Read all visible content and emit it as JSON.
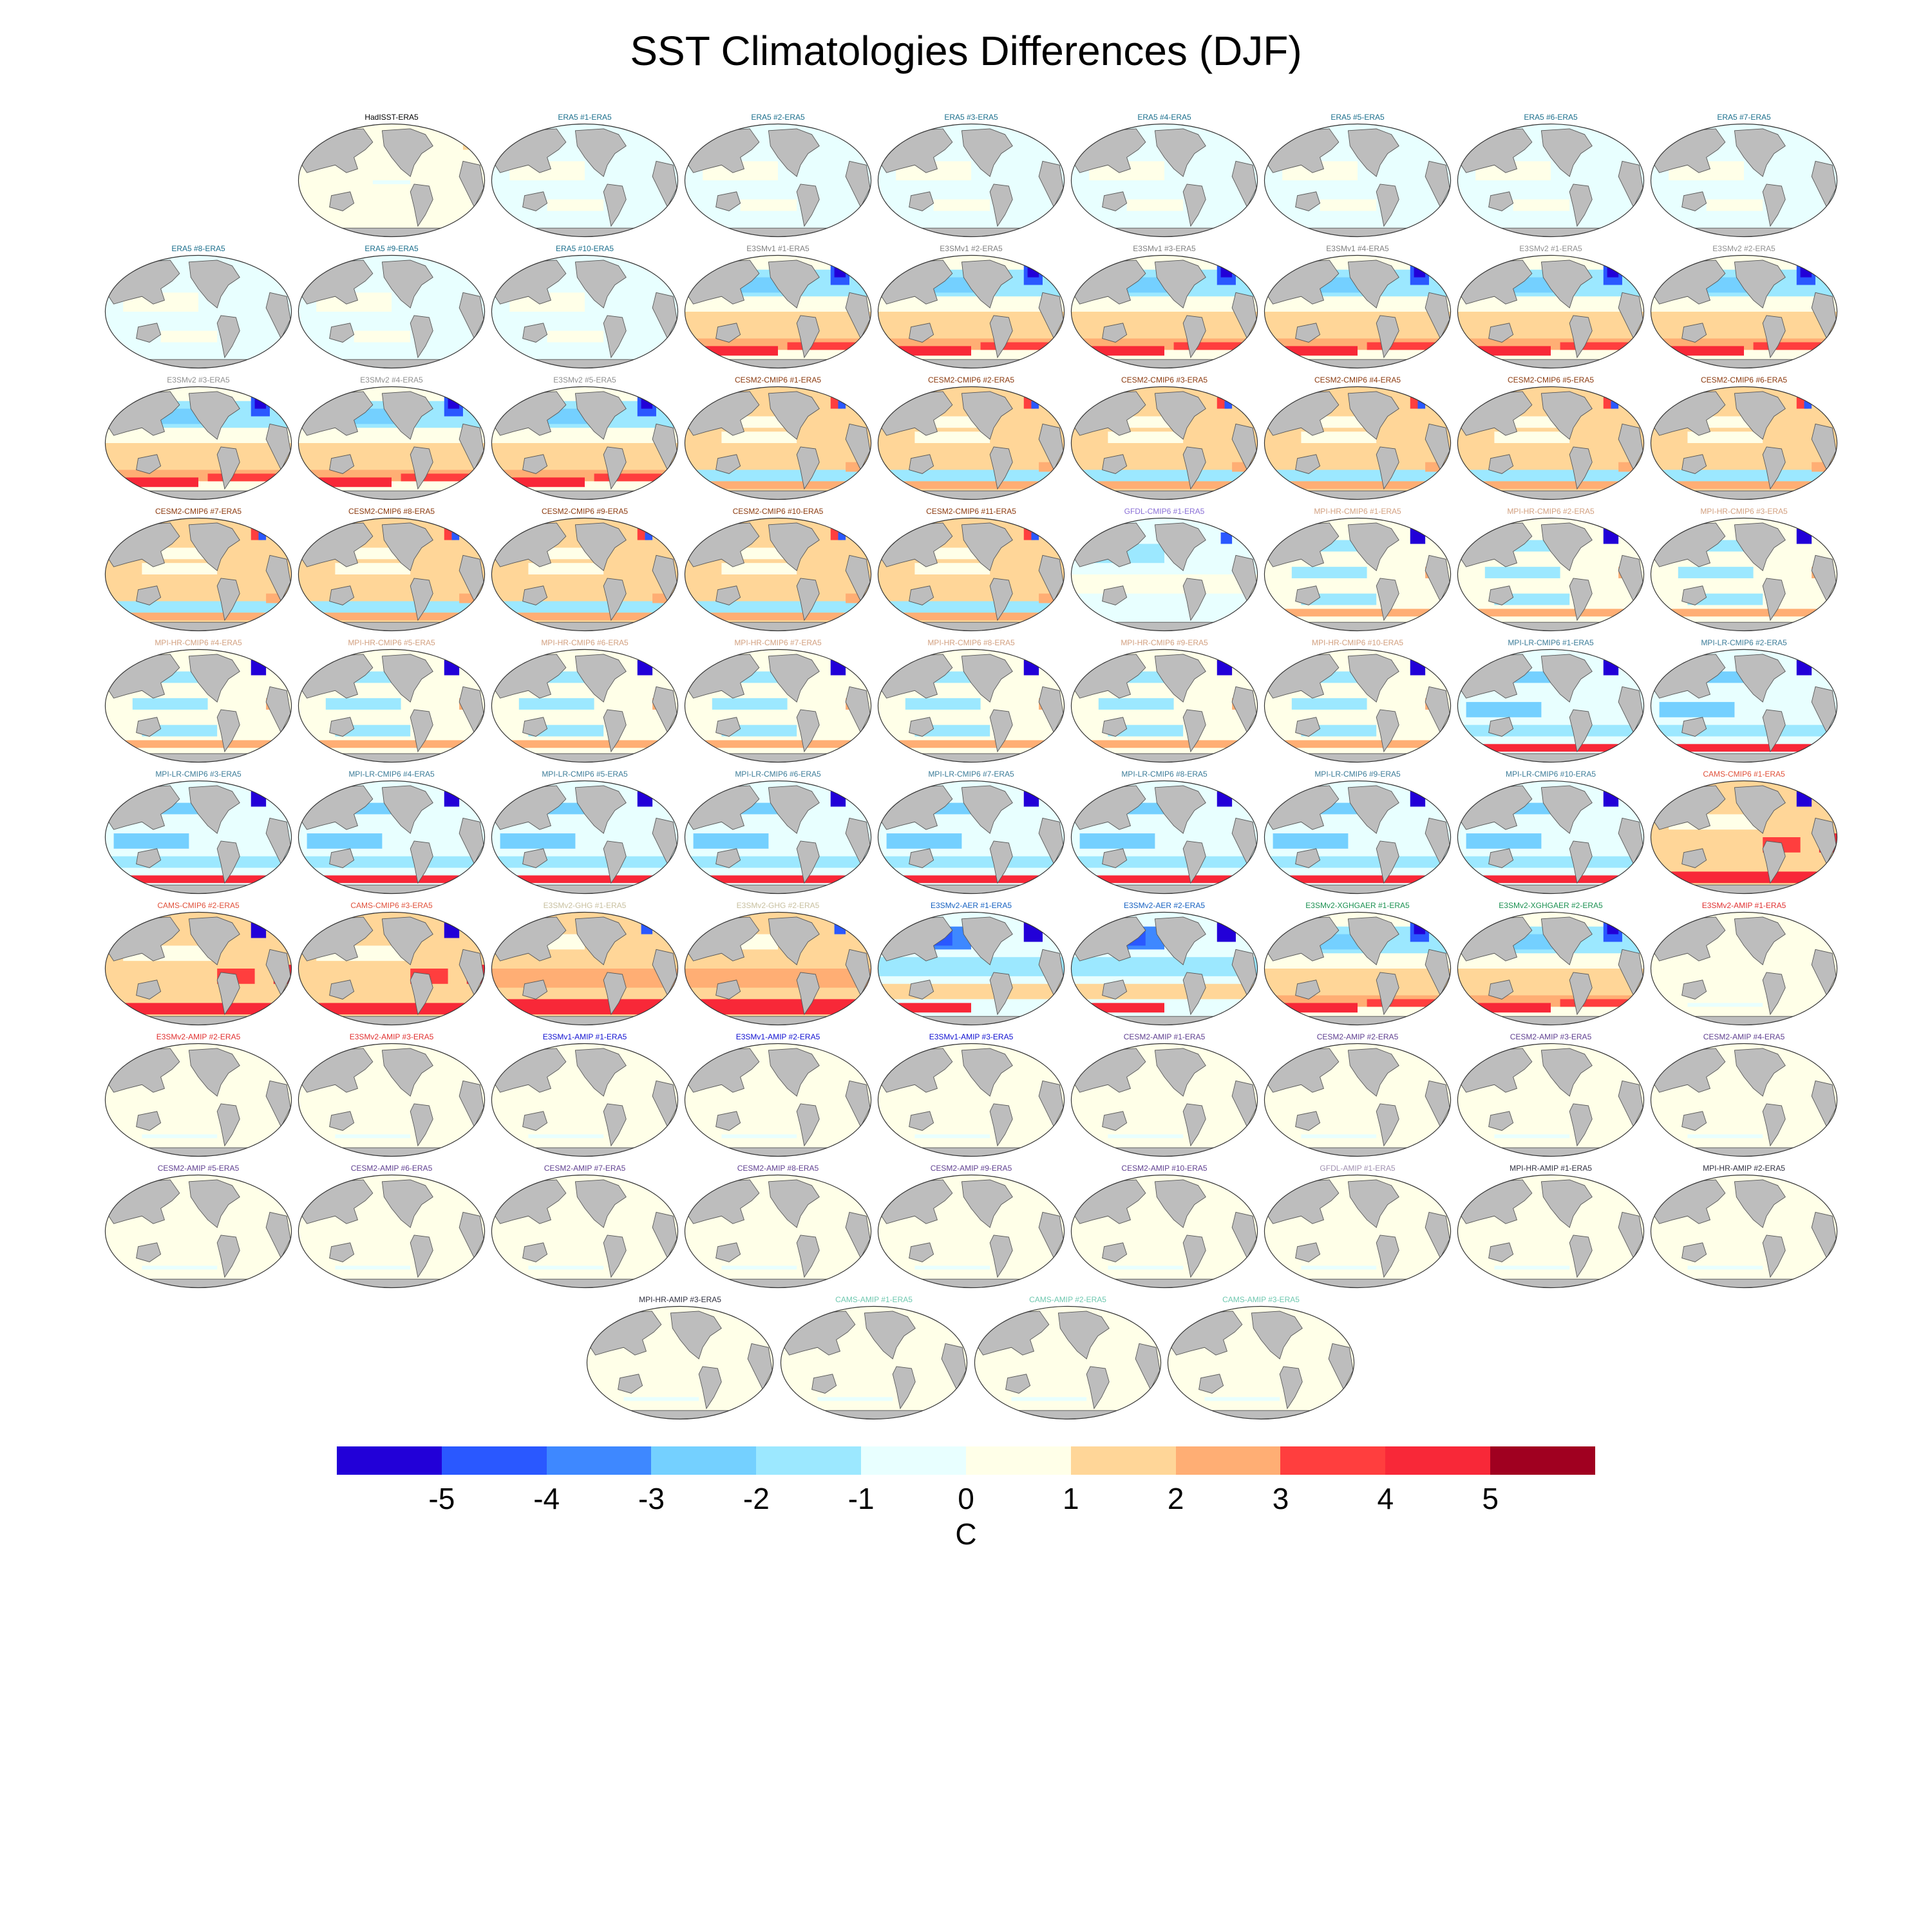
{
  "chart_data": {
    "type": "heatmap",
    "title": "SST Climatologies Differences (DJF)",
    "colorbar": {
      "label": "C",
      "ticks": [
        "-5",
        "-4",
        "-3",
        "-2",
        "-1",
        "0",
        "1",
        "2",
        "3",
        "4",
        "5"
      ],
      "colors": [
        "#2200d8",
        "#2a58ff",
        "#3e88ff",
        "#74d0ff",
        "#9ce8ff",
        "#e8ffff",
        "#ffffe8",
        "#ffd698",
        "#ffae74",
        "#ff3e3e",
        "#f82838",
        "#a00020"
      ]
    },
    "panels": [
      {
        "title": "HadISST-ERA5",
        "color": "#000000",
        "pattern": "had"
      },
      {
        "title": "ERA5  #1-ERA5",
        "color": "#1a6e8c",
        "pattern": "era5"
      },
      {
        "title": "ERA5  #2-ERA5",
        "color": "#1a6e8c",
        "pattern": "era5"
      },
      {
        "title": "ERA5  #3-ERA5",
        "color": "#1a6e8c",
        "pattern": "era5"
      },
      {
        "title": "ERA5  #4-ERA5",
        "color": "#1a6e8c",
        "pattern": "era5"
      },
      {
        "title": "ERA5  #5-ERA5",
        "color": "#1a6e8c",
        "pattern": "era5"
      },
      {
        "title": "ERA5  #6-ERA5",
        "color": "#1a6e8c",
        "pattern": "era5"
      },
      {
        "title": "ERA5  #7-ERA5",
        "color": "#1a6e8c",
        "pattern": "era5"
      },
      {
        "title": "ERA5  #8-ERA5",
        "color": "#1a6e8c",
        "pattern": "era5"
      },
      {
        "title": "ERA5  #9-ERA5",
        "color": "#1a6e8c",
        "pattern": "era5"
      },
      {
        "title": "ERA5  #10-ERA5",
        "color": "#1a6e8c",
        "pattern": "era5"
      },
      {
        "title": "E3SMv1 #1-ERA5",
        "color": "#808080",
        "pattern": "e3sm"
      },
      {
        "title": "E3SMv1 #2-ERA5",
        "color": "#808080",
        "pattern": "e3sm"
      },
      {
        "title": "E3SMv1 #3-ERA5",
        "color": "#808080",
        "pattern": "e3sm"
      },
      {
        "title": "E3SMv1 #4-ERA5",
        "color": "#808080",
        "pattern": "e3sm"
      },
      {
        "title": "E3SMv2 #1-ERA5",
        "color": "#909090",
        "pattern": "e3sm"
      },
      {
        "title": "E3SMv2 #2-ERA5",
        "color": "#909090",
        "pattern": "e3sm"
      },
      {
        "title": "E3SMv2 #3-ERA5",
        "color": "#909090",
        "pattern": "e3sm"
      },
      {
        "title": "E3SMv2 #4-ERA5",
        "color": "#909090",
        "pattern": "e3sm"
      },
      {
        "title": "E3SMv2 #5-ERA5",
        "color": "#909090",
        "pattern": "e3sm"
      },
      {
        "title": "CESM2-CMIP6 #1-ERA5",
        "color": "#8b3a0f",
        "pattern": "cesm"
      },
      {
        "title": "CESM2-CMIP6 #2-ERA5",
        "color": "#8b3a0f",
        "pattern": "cesm"
      },
      {
        "title": "CESM2-CMIP6 #3-ERA5",
        "color": "#8b3a0f",
        "pattern": "cesm"
      },
      {
        "title": "CESM2-CMIP6 #4-ERA5",
        "color": "#8b3a0f",
        "pattern": "cesm"
      },
      {
        "title": "CESM2-CMIP6 #5-ERA5",
        "color": "#8b3a0f",
        "pattern": "cesm"
      },
      {
        "title": "CESM2-CMIP6 #6-ERA5",
        "color": "#8b3a0f",
        "pattern": "cesm"
      },
      {
        "title": "CESM2-CMIP6 #7-ERA5",
        "color": "#8b3a0f",
        "pattern": "cesm"
      },
      {
        "title": "CESM2-CMIP6 #8-ERA5",
        "color": "#8b3a0f",
        "pattern": "cesm"
      },
      {
        "title": "CESM2-CMIP6 #9-ERA5",
        "color": "#8b3a0f",
        "pattern": "cesm"
      },
      {
        "title": "CESM2-CMIP6 #10-ERA5",
        "color": "#8b3a0f",
        "pattern": "cesm"
      },
      {
        "title": "CESM2-CMIP6 #11-ERA5",
        "color": "#8b3a0f",
        "pattern": "cesm"
      },
      {
        "title": "GFDL-CMIP6 #1-ERA5",
        "color": "#8a6fd6",
        "pattern": "gfdl"
      },
      {
        "title": "MPI-HR-CMIP6 #1-ERA5",
        "color": "#d2a080",
        "pattern": "mpi"
      },
      {
        "title": "MPI-HR-CMIP6 #2-ERA5",
        "color": "#d2a080",
        "pattern": "mpi"
      },
      {
        "title": "MPI-HR-CMIP6 #3-ERA5",
        "color": "#d2a080",
        "pattern": "mpi"
      },
      {
        "title": "MPI-HR-CMIP6 #4-ERA5",
        "color": "#d2a080",
        "pattern": "mpi"
      },
      {
        "title": "MPI-HR-CMIP6 #5-ERA5",
        "color": "#d2a080",
        "pattern": "mpi"
      },
      {
        "title": "MPI-HR-CMIP6 #6-ERA5",
        "color": "#d2a080",
        "pattern": "mpi"
      },
      {
        "title": "MPI-HR-CMIP6 #7-ERA5",
        "color": "#d2a080",
        "pattern": "mpi"
      },
      {
        "title": "MPI-HR-CMIP6 #8-ERA5",
        "color": "#d2a080",
        "pattern": "mpi"
      },
      {
        "title": "MPI-HR-CMIP6 #9-ERA5",
        "color": "#d2a080",
        "pattern": "mpi"
      },
      {
        "title": "MPI-HR-CMIP6 #10-ERA5",
        "color": "#d2a080",
        "pattern": "mpi"
      },
      {
        "title": "MPI-LR-CMIP6 #1-ERA5",
        "color": "#3c7c98",
        "pattern": "mpilr"
      },
      {
        "title": "MPI-LR-CMIP6 #2-ERA5",
        "color": "#3c7c98",
        "pattern": "mpilr"
      },
      {
        "title": "MPI-LR-CMIP6 #3-ERA5",
        "color": "#3c7c98",
        "pattern": "mpilr"
      },
      {
        "title": "MPI-LR-CMIP6 #4-ERA5",
        "color": "#3c7c98",
        "pattern": "mpilr"
      },
      {
        "title": "MPI-LR-CMIP6 #5-ERA5",
        "color": "#3c7c98",
        "pattern": "mpilr"
      },
      {
        "title": "MPI-LR-CMIP6 #6-ERA5",
        "color": "#3c7c98",
        "pattern": "mpilr"
      },
      {
        "title": "MPI-LR-CMIP6 #7-ERA5",
        "color": "#3c7c98",
        "pattern": "mpilr"
      },
      {
        "title": "MPI-LR-CMIP6 #8-ERA5",
        "color": "#3c7c98",
        "pattern": "mpilr"
      },
      {
        "title": "MPI-LR-CMIP6 #9-ERA5",
        "color": "#3c7c98",
        "pattern": "mpilr"
      },
      {
        "title": "MPI-LR-CMIP6 #10-ERA5",
        "color": "#3c7c98",
        "pattern": "mpilr"
      },
      {
        "title": "CAMS-CMIP6 #1-ERA5",
        "color": "#e0503a",
        "pattern": "cams"
      },
      {
        "title": "CAMS-CMIP6 #2-ERA5",
        "color": "#e0503a",
        "pattern": "cams"
      },
      {
        "title": "CAMS-CMIP6 #3-ERA5",
        "color": "#e0503a",
        "pattern": "cams"
      },
      {
        "title": "E3SMv2-GHG #1-ERA5",
        "color": "#c8c0a0",
        "pattern": "ghg"
      },
      {
        "title": "E3SMv2-GHG #2-ERA5",
        "color": "#c8c0a0",
        "pattern": "ghg"
      },
      {
        "title": "E3SMv2-AER #1-ERA5",
        "color": "#1560c0",
        "pattern": "aer"
      },
      {
        "title": "E3SMv2-AER #2-ERA5",
        "color": "#1560c0",
        "pattern": "aer"
      },
      {
        "title": "E3SMv2-XGHGAER #1-ERA5",
        "color": "#1a9050",
        "pattern": "e3sm"
      },
      {
        "title": "E3SMv2-XGHGAER #2-ERA5",
        "color": "#1a9050",
        "pattern": "e3sm"
      },
      {
        "title": "E3SMv2-AMIP #1-ERA5",
        "color": "#e03030",
        "pattern": "amip"
      },
      {
        "title": "E3SMv2-AMIP #2-ERA5",
        "color": "#e03030",
        "pattern": "amip"
      },
      {
        "title": "E3SMv2-AMIP #3-ERA5",
        "color": "#e03030",
        "pattern": "amip"
      },
      {
        "title": "E3SMv1-AMIP #1-ERA5",
        "color": "#1010d0",
        "pattern": "amip"
      },
      {
        "title": "E3SMv1-AMIP #2-ERA5",
        "color": "#1010d0",
        "pattern": "amip"
      },
      {
        "title": "E3SMv1-AMIP #3-ERA5",
        "color": "#1010d0",
        "pattern": "amip"
      },
      {
        "title": "CESM2-AMIP #1-ERA5",
        "color": "#604090",
        "pattern": "amip"
      },
      {
        "title": "CESM2-AMIP #2-ERA5",
        "color": "#604090",
        "pattern": "amip"
      },
      {
        "title": "CESM2-AMIP #3-ERA5",
        "color": "#604090",
        "pattern": "amip"
      },
      {
        "title": "CESM2-AMIP #4-ERA5",
        "color": "#604090",
        "pattern": "amip"
      },
      {
        "title": "CESM2-AMIP #5-ERA5",
        "color": "#604090",
        "pattern": "amip"
      },
      {
        "title": "CESM2-AMIP #6-ERA5",
        "color": "#604090",
        "pattern": "amip"
      },
      {
        "title": "CESM2-AMIP #7-ERA5",
        "color": "#604090",
        "pattern": "amip"
      },
      {
        "title": "CESM2-AMIP #8-ERA5",
        "color": "#604090",
        "pattern": "amip"
      },
      {
        "title": "CESM2-AMIP #9-ERA5",
        "color": "#604090",
        "pattern": "amip"
      },
      {
        "title": "CESM2-AMIP #10-ERA5",
        "color": "#604090",
        "pattern": "amip"
      },
      {
        "title": "GFDL-AMIP #1-ERA5",
        "color": "#a090b0",
        "pattern": "amip"
      },
      {
        "title": "MPI-HR-AMIP #1-ERA5",
        "color": "#303040",
        "pattern": "amip"
      },
      {
        "title": "MPI-HR-AMIP #2-ERA5",
        "color": "#303040",
        "pattern": "amip"
      },
      {
        "title": "MPI-HR-AMIP #3-ERA5",
        "color": "#303040",
        "pattern": "amip"
      },
      {
        "title": "CAMS-AMIP #1-ERA5",
        "color": "#70c8b0",
        "pattern": "amip"
      },
      {
        "title": "CAMS-AMIP #2-ERA5",
        "color": "#70c8b0",
        "pattern": "amip"
      },
      {
        "title": "CAMS-AMIP #3-ERA5",
        "color": "#70c8b0",
        "pattern": "amip"
      }
    ]
  }
}
